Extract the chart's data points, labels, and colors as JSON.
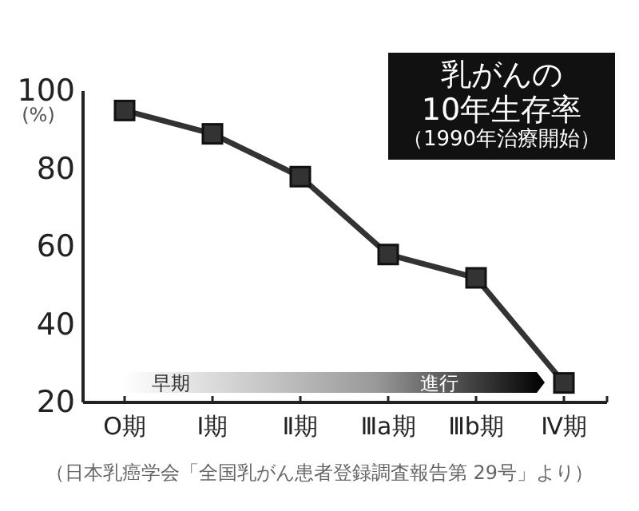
{
  "chart_data": {
    "type": "line",
    "title": "乳がんの\n10年生存率",
    "subtitle": "（1990年治療開始）",
    "ylabel": "(%)",
    "categories": [
      "O期",
      "Ⅰ期",
      "Ⅱ期",
      "Ⅲa期",
      "Ⅲb期",
      "Ⅳ期"
    ],
    "series": [
      {
        "color": "#333333",
        "values": [
          95,
          89,
          78,
          58,
          52,
          25
        ]
      }
    ],
    "ylim": [
      20,
      100
    ],
    "yticks": [
      20,
      40,
      60,
      80,
      100
    ],
    "marker": "square",
    "line_style": "solid",
    "grid": false,
    "annotations": [
      "早期",
      "進行",
      "（日本乳癌学会「全国乳がん患者登録調査報告第 29号」より）"
    ]
  }
}
